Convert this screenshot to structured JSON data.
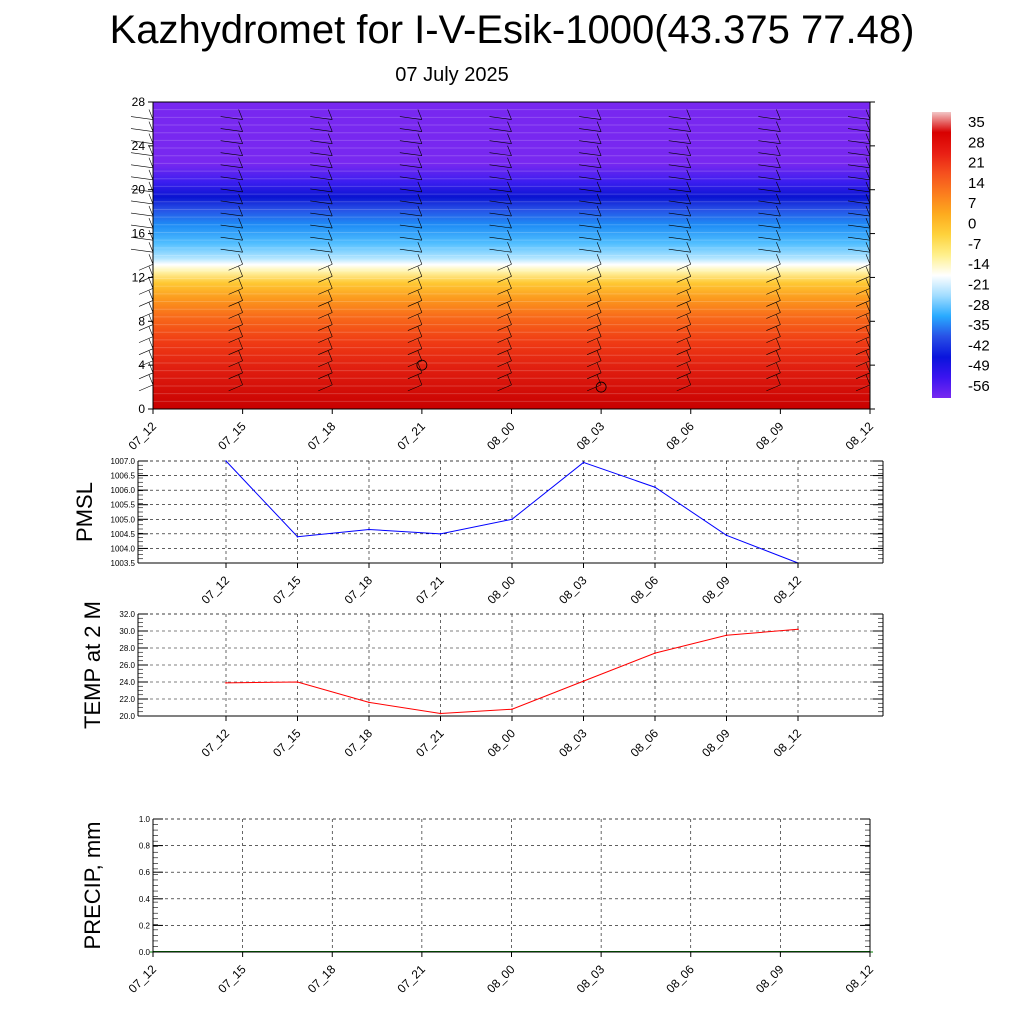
{
  "header": {
    "title": "Kazhydromet for I-V-Esik-1000(43.375 77.48)",
    "date": "07 July 2025"
  },
  "chart_data": [
    {
      "type": "heatmap",
      "name": "temperature-height-section",
      "xlabel": "",
      "ylabel": "",
      "x_ticks": [
        "07_12",
        "07_15",
        "07_18",
        "07_21",
        "08_00",
        "08_03",
        "08_06",
        "08_09",
        "08_12"
      ],
      "y_ticks": [
        0,
        4,
        8,
        12,
        16,
        20,
        24,
        28
      ],
      "ylim": [
        0,
        28
      ],
      "colorbar": {
        "labels": [
          35,
          28,
          21,
          14,
          7,
          0,
          -7,
          -14,
          -21,
          -28,
          -35,
          -42,
          -49,
          -56
        ],
        "stops": [
          "#f2c6c6",
          "#d80000",
          "#e81e14",
          "#f5501e",
          "#fb7d1e",
          "#fdab1e",
          "#fed23c",
          "#fff08c",
          "#ffffff",
          "#a0dcff",
          "#28aaff",
          "#2850e6",
          "#0a14dc",
          "#3c14f0",
          "#7828f0"
        ]
      },
      "wind_barbs": true,
      "calm_markers": [
        {
          "x": "07_21",
          "height": 4
        },
        {
          "x": "08_03",
          "height": 2
        }
      ]
    },
    {
      "type": "line",
      "name": "PMSL",
      "ylabel": "PMSL",
      "categories": [
        "07_12",
        "07_15",
        "07_18",
        "07_21",
        "08_00",
        "08_03",
        "08_06",
        "08_09",
        "08_12"
      ],
      "values": [
        1007.0,
        1004.4,
        1004.65,
        1004.5,
        1005.0,
        1006.95,
        1006.1,
        1004.45,
        1003.5
      ],
      "ylim": [
        1003.5,
        1007.0
      ],
      "y_ticks": [
        "1007.0",
        "1006.5",
        "1006.0",
        "1005.5",
        "1005.0",
        "1004.5",
        "1004.0",
        "1003.5"
      ],
      "color": "#0000ff",
      "grid": true
    },
    {
      "type": "line",
      "name": "TEMP at 2 M",
      "ylabel": "TEMP at 2 M",
      "categories": [
        "07_12",
        "07_15",
        "07_18",
        "07_21",
        "08_00",
        "08_03",
        "08_06",
        "08_09",
        "08_12"
      ],
      "values": [
        23.9,
        24.0,
        21.6,
        20.3,
        20.8,
        24.1,
        27.4,
        29.5,
        30.2
      ],
      "ylim": [
        20.0,
        32.0
      ],
      "y_ticks": [
        "32.0",
        "30.0",
        "28.0",
        "26.0",
        "24.0",
        "22.0",
        "20.0"
      ],
      "color": "#ff0000",
      "grid": true
    },
    {
      "type": "bar",
      "name": "PRECIP",
      "ylabel": "PRECIP, mm",
      "categories": [
        "07_12",
        "07_15",
        "07_18",
        "07_21",
        "08_00",
        "08_03",
        "08_06",
        "08_09",
        "08_12"
      ],
      "values": [
        0,
        0,
        0,
        0,
        0,
        0,
        0,
        0,
        0
      ],
      "ylim": [
        0.0,
        1.0
      ],
      "y_ticks": [
        "1.0",
        "0.8",
        "0.6",
        "0.4",
        "0.2",
        "0.0"
      ],
      "color": "#008000",
      "grid": true
    }
  ]
}
